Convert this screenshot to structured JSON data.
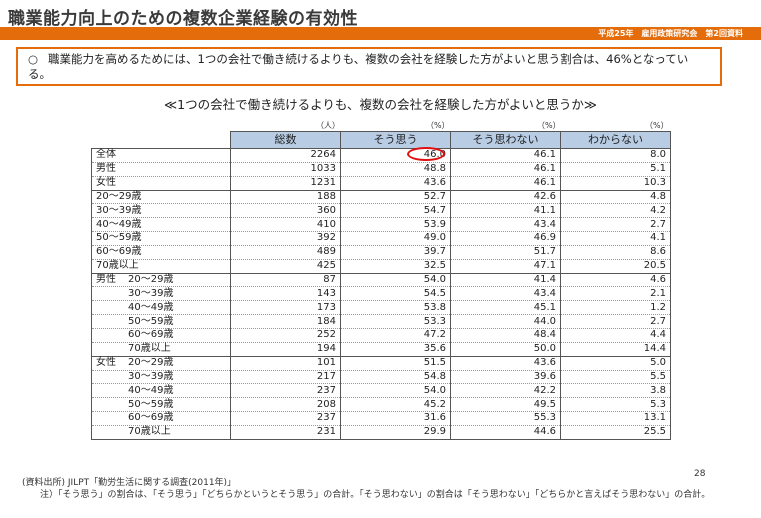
{
  "title": "職業能力向上のための複数企業経験の有効性",
  "subtitle": "平成25年　雇用政策研究会　第2回資料",
  "summary": {
    "bullet": "○",
    "text": "職業能力を高めるためには、1つの会社で働き続けるよりも、複数の会社を経験した方がよいと思う割合は、46%となっている。"
  },
  "heading": "≪1つの会社で働き続けるよりも、複数の会社を経験した方がよいと思うか≫",
  "units": [
    "（人）",
    "（%）",
    "（%）",
    "（%）"
  ],
  "table": {
    "headers": [
      "総数",
      "そう思う",
      "そう思わない",
      "わからない"
    ],
    "rows": [
      {
        "group": "",
        "label": "全体",
        "total": "2264",
        "yes": "46.0",
        "no": "46.1",
        "unknown": "8.0"
      },
      {
        "group": "",
        "label": "男性",
        "total": "1033",
        "yes": "48.8",
        "no": "46.1",
        "unknown": "5.1"
      },
      {
        "group": "",
        "label": "女性",
        "total": "1231",
        "yes": "43.6",
        "no": "46.1",
        "unknown": "10.3"
      },
      {
        "group": "",
        "label": "20～29歳",
        "total": "188",
        "yes": "52.7",
        "no": "42.6",
        "unknown": "4.8"
      },
      {
        "group": "",
        "label": "30～39歳",
        "total": "360",
        "yes": "54.7",
        "no": "41.1",
        "unknown": "4.2"
      },
      {
        "group": "",
        "label": "40～49歳",
        "total": "410",
        "yes": "53.9",
        "no": "43.4",
        "unknown": "2.7"
      },
      {
        "group": "",
        "label": "50～59歳",
        "total": "392",
        "yes": "49.0",
        "no": "46.9",
        "unknown": "4.1"
      },
      {
        "group": "",
        "label": "60～69歳",
        "total": "489",
        "yes": "39.7",
        "no": "51.7",
        "unknown": "8.6"
      },
      {
        "group": "",
        "label": "70歳以上",
        "total": "425",
        "yes": "32.5",
        "no": "47.1",
        "unknown": "20.5"
      },
      {
        "group": "男性",
        "label": "20～29歳",
        "total": "87",
        "yes": "54.0",
        "no": "41.4",
        "unknown": "4.6"
      },
      {
        "group": "",
        "label": "30～39歳",
        "total": "143",
        "yes": "54.5",
        "no": "43.4",
        "unknown": "2.1"
      },
      {
        "group": "",
        "label": "40～49歳",
        "total": "173",
        "yes": "53.8",
        "no": "45.1",
        "unknown": "1.2"
      },
      {
        "group": "",
        "label": "50～59歳",
        "total": "184",
        "yes": "53.3",
        "no": "44.0",
        "unknown": "2.7"
      },
      {
        "group": "",
        "label": "60～69歳",
        "total": "252",
        "yes": "47.2",
        "no": "48.4",
        "unknown": "4.4"
      },
      {
        "group": "",
        "label": "70歳以上",
        "total": "194",
        "yes": "35.6",
        "no": "50.0",
        "unknown": "14.4"
      },
      {
        "group": "女性",
        "label": "20～29歳",
        "total": "101",
        "yes": "51.5",
        "no": "43.6",
        "unknown": "5.0"
      },
      {
        "group": "",
        "label": "30～39歳",
        "total": "217",
        "yes": "54.8",
        "no": "39.6",
        "unknown": "5.5"
      },
      {
        "group": "",
        "label": "40～49歳",
        "total": "237",
        "yes": "54.0",
        "no": "42.2",
        "unknown": "3.8"
      },
      {
        "group": "",
        "label": "50～59歳",
        "total": "208",
        "yes": "45.2",
        "no": "49.5",
        "unknown": "5.3"
      },
      {
        "group": "",
        "label": "60～69歳",
        "total": "237",
        "yes": "31.6",
        "no": "55.3",
        "unknown": "13.1"
      },
      {
        "group": "",
        "label": "70歳以上",
        "total": "231",
        "yes": "29.9",
        "no": "44.6",
        "unknown": "25.5"
      }
    ]
  },
  "source": "(資料出所) JILPT「勤労生活に関する調査(2011年)」",
  "note": "注）「そう思う」の割合は、「そう思う」「どちらかというとそう思う」の合計。「そう思わない」の割合は「そう思わない」「どちらかと言えばそう思わない」の合計。",
  "page_number": "28",
  "colors": {
    "accent": "#e46c0a",
    "header_fill": "#b8cce4",
    "highlight_circle": "#e01010"
  }
}
